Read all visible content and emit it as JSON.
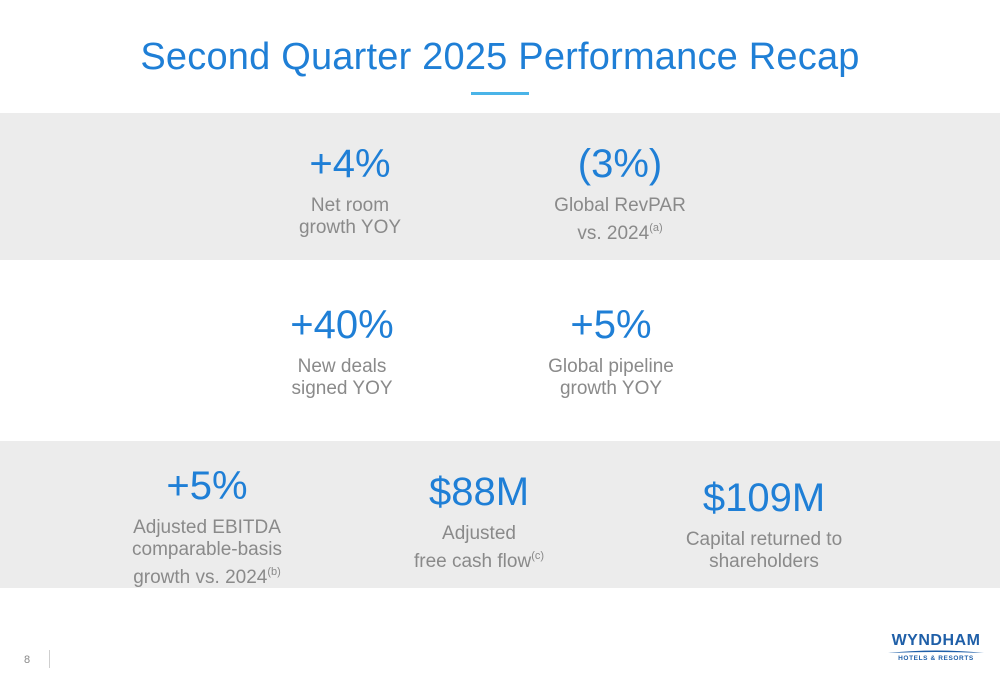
{
  "title": "Second Quarter 2025 Performance Recap",
  "rows": [
    [
      {
        "value": "+4%",
        "label_lines": [
          "Net room",
          "growth YOY"
        ],
        "footnote": ""
      },
      {
        "value": "(3%)",
        "label_lines": [
          "Global RevPAR",
          "vs. 2024"
        ],
        "footnote": "(a)"
      }
    ],
    [
      {
        "value": "+40%",
        "label_lines": [
          "New deals",
          "signed YOY"
        ],
        "footnote": ""
      },
      {
        "value": "+5%",
        "label_lines": [
          "Global pipeline",
          "growth YOY"
        ],
        "footnote": ""
      }
    ],
    [
      {
        "value": "+5%",
        "label_lines": [
          "Adjusted EBITDA",
          "comparable-basis",
          "growth vs. 2024"
        ],
        "footnote": "(b)"
      },
      {
        "value": "$88M",
        "label_lines": [
          "Adjusted",
          "free cash flow"
        ],
        "footnote": "(c)"
      },
      {
        "value": "$109M",
        "label_lines": [
          "Capital returned to",
          "shareholders"
        ],
        "footnote": ""
      }
    ]
  ],
  "footer": {
    "page_number": "8",
    "logo_main": "WYNDHAM",
    "logo_sub": "HOTELS & RESORTS"
  },
  "colors": {
    "accent": "#1f7fd6",
    "label": "#8a8a8a",
    "band": "#ececec",
    "logo": "#1f5fa8"
  }
}
